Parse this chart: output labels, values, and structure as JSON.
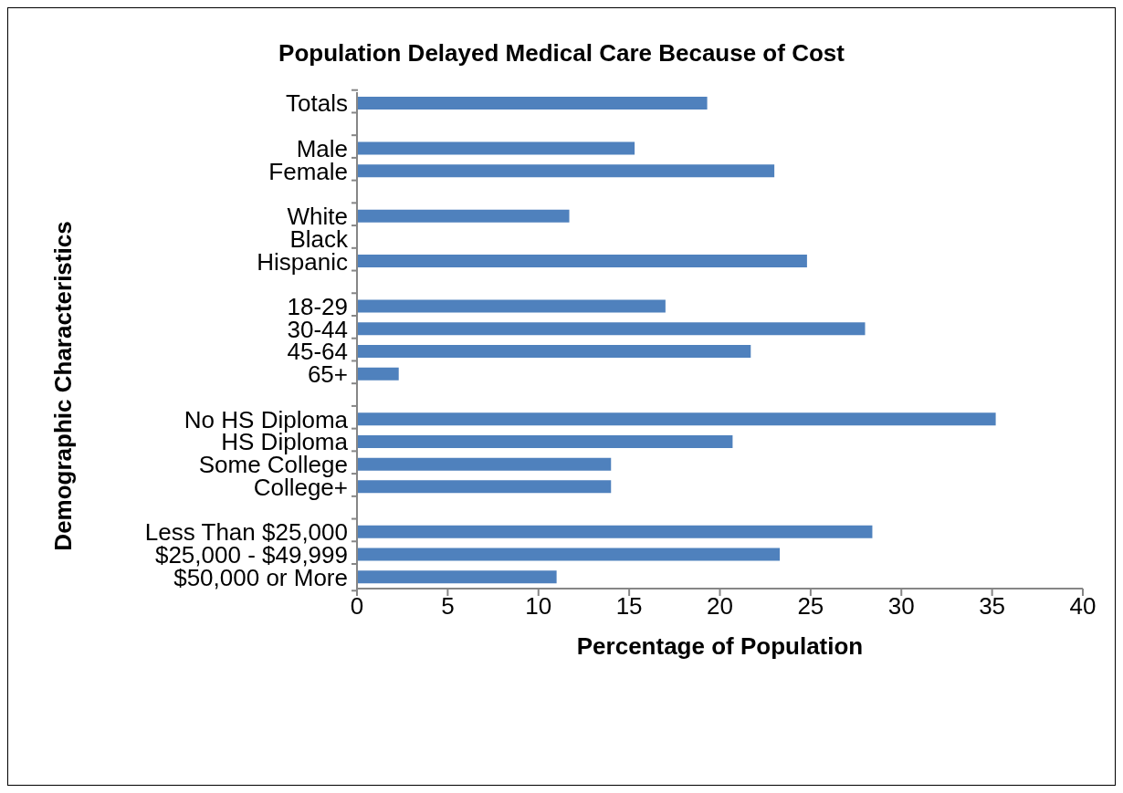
{
  "chart_data": {
    "type": "bar",
    "orientation": "horizontal",
    "title": "Population Delayed Medical Care Because of Cost",
    "xlabel": "Percentage of Population",
    "ylabel": "Demographic Characteristics",
    "categories": [
      "Totals",
      null,
      "Male",
      "Female",
      null,
      "White ",
      "Black",
      "Hispanic",
      null,
      "18-29",
      "30-44",
      "45-64",
      "65+",
      null,
      "No HS Diploma",
      "HS Diploma",
      "Some College",
      "College+",
      null,
      "Less Than $25,000",
      "$25,000 - $49,999",
      "$50,000 or More"
    ],
    "values": [
      19.3,
      null,
      15.3,
      23.0,
      null,
      11.7,
      null,
      24.8,
      null,
      17.0,
      28.0,
      21.7,
      2.3,
      null,
      35.2,
      20.7,
      14.0,
      14.0,
      null,
      28.4,
      23.3,
      11.0
    ],
    "color": "#4f81bd",
    "xlim": [
      0,
      40
    ],
    "xticks": [
      0,
      5,
      10,
      15,
      20,
      25,
      30,
      35,
      40
    ],
    "grid": false,
    "legend": false
  }
}
